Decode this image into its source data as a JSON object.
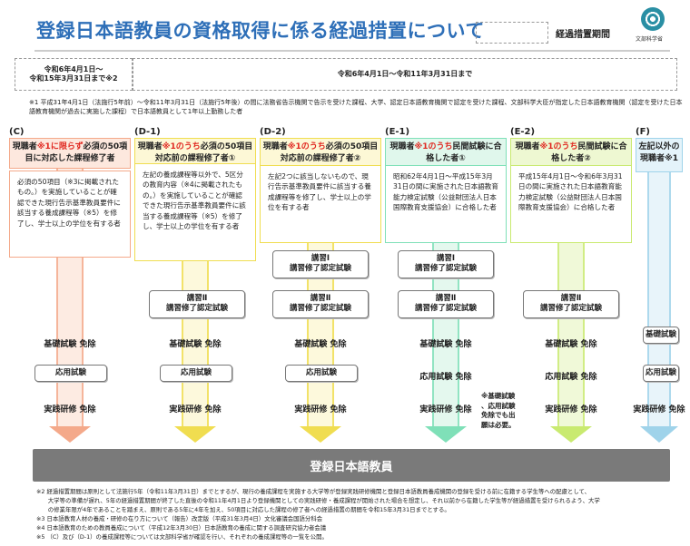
{
  "header": {
    "title": "登録日本語教員の資格取得に係る経過措置について",
    "legend_label": "経過措置期間",
    "logo_text": "文部科学省"
  },
  "periods": {
    "left": [
      "令和6年4月1日～",
      "令和15年3月31日まで※2"
    ],
    "right": "令和6年4月1日～令和11年3月31日まで"
  },
  "note1": "※1 平成31年4月1日（法施行5年前）～令和11年3月31日（法施行5年後）の間に法務省告示機関で告示を受けた課程、大学、認定日本語教育機関で認定を受けた課程、文部科学大臣が指定した日本語教育機関（認定を受けた日本語教育機関が過去に実施した課程）で日本語教員として1年以上勤務した者",
  "columns": [
    {
      "id": "(C)",
      "head_a": "現職者",
      "head_red": "※1に限らず",
      "head_b": "必須の50項目に対応した課程修了者",
      "desc": "必須の50項目（※3に掲載されたもの。）を実施していることが確認できた現行告示基準教員要件に該当する養成課程等（※5）を修了し、学士以上の学位を有する者",
      "color": "#f4a98a",
      "light": "#fde8de"
    },
    {
      "id": "(D-1)",
      "head_a": "現職者",
      "head_red": "※1のうち",
      "head_b": "必須の50項目対応前の課程修了者①",
      "desc": "左記の養成課程等以外で、5区分の教育内容（※4に掲載されたもの。）を実施していることが確認できた現行告示基準教員要件に該当する養成課程等（※5）を修了し、学士以上の学位を有する者",
      "color": "#f0dd50",
      "light": "#fdf8d6"
    },
    {
      "id": "(D-2)",
      "head_a": "現職者",
      "head_red": "※1のうち",
      "head_b": "必須の50項目対応前の課程修了者②",
      "desc": "左記2つに該当しないもので、現行告示基準教員要件に該当する養成課程等を修了し、学士以上の学位を有する者",
      "color": "#f0dd50",
      "light": "#fdf8d6"
    },
    {
      "id": "(E-1)",
      "head_a": "現職者",
      "head_red": "※1のうち",
      "head_b": "民間試験に合格した者①",
      "desc": "昭和62年4月1日～平成15年3月31日の間に実施された日本語教育能力検定試験（公益財団法人日本国際教育支援協会）に合格した者",
      "color": "#7fe0b8",
      "light": "#e0f7ec"
    },
    {
      "id": "(E-2)",
      "head_a": "現職者",
      "head_red": "※1のうち",
      "head_b": "民間試験に合格した者②",
      "desc": "平成15年4月1日～令和6年3月31日の間に実施された日本語教育能力検定試験（公益財団法人日本国際教育支援協会）に合格した者",
      "color": "#c9ea70",
      "light": "#eef8d2"
    },
    {
      "id": "(F)",
      "head_a": "左記以外の現職者",
      "head_red": "",
      "head_b": "※1",
      "desc": "",
      "color": "#9fd3ea",
      "light": "#e4f3fa"
    }
  ],
  "exams": {
    "course1": [
      "講習Ⅰ",
      "講習修了認定試験"
    ],
    "course2": [
      "講習Ⅱ",
      "講習修了認定試験"
    ],
    "basic_exempt": "基礎試験 免除",
    "basic": "基礎試験",
    "applied": "応用試験",
    "applied_exempt": "応用試験 免除",
    "practice_exempt": "実践研修 免除",
    "e2_note": [
      "※基礎試験",
      "、応用試験",
      "免除でも出",
      "願は必要。"
    ]
  },
  "base_label": "登録日本語教員",
  "notes2": [
    "※2 経過措置期間は原則として法施行5年（令和11年3月31日）までとするが、現行の養成課程を実施する大学等が登録実践研修機関と登録日本語教員養成機関の登録を受ける前に在籍する学生等への配慮として、",
    "　　大学等の準備が遅れ、5年の経過措置期間が終了した直後の令和11年4月1日より登録機関としての実践研修・養成課程が開始された場合を想定し、それ以前から在籍した学生等が経過措置を受けられるよう、大学",
    "　　の修業年限が4年であることを踏まえ、原則である5年に4年を加え、50項目に対応した課程の修了者への経過措置の期間を令和15年3月31日までとする。",
    "※3 日本語教育人材の養成・研修の在り方について（報告）改定版（平成31年3月4日）文化審議会国語分科会",
    "※4 日本語教育のための教員養成について（平成12年3月30日）日本語教育の養成に関する調査研究協力者会議",
    "※5 （C）及び（D-1）の養成課程等については文部科学省が確認を行い、それぞれの養成課程等の一覧を公開。"
  ]
}
